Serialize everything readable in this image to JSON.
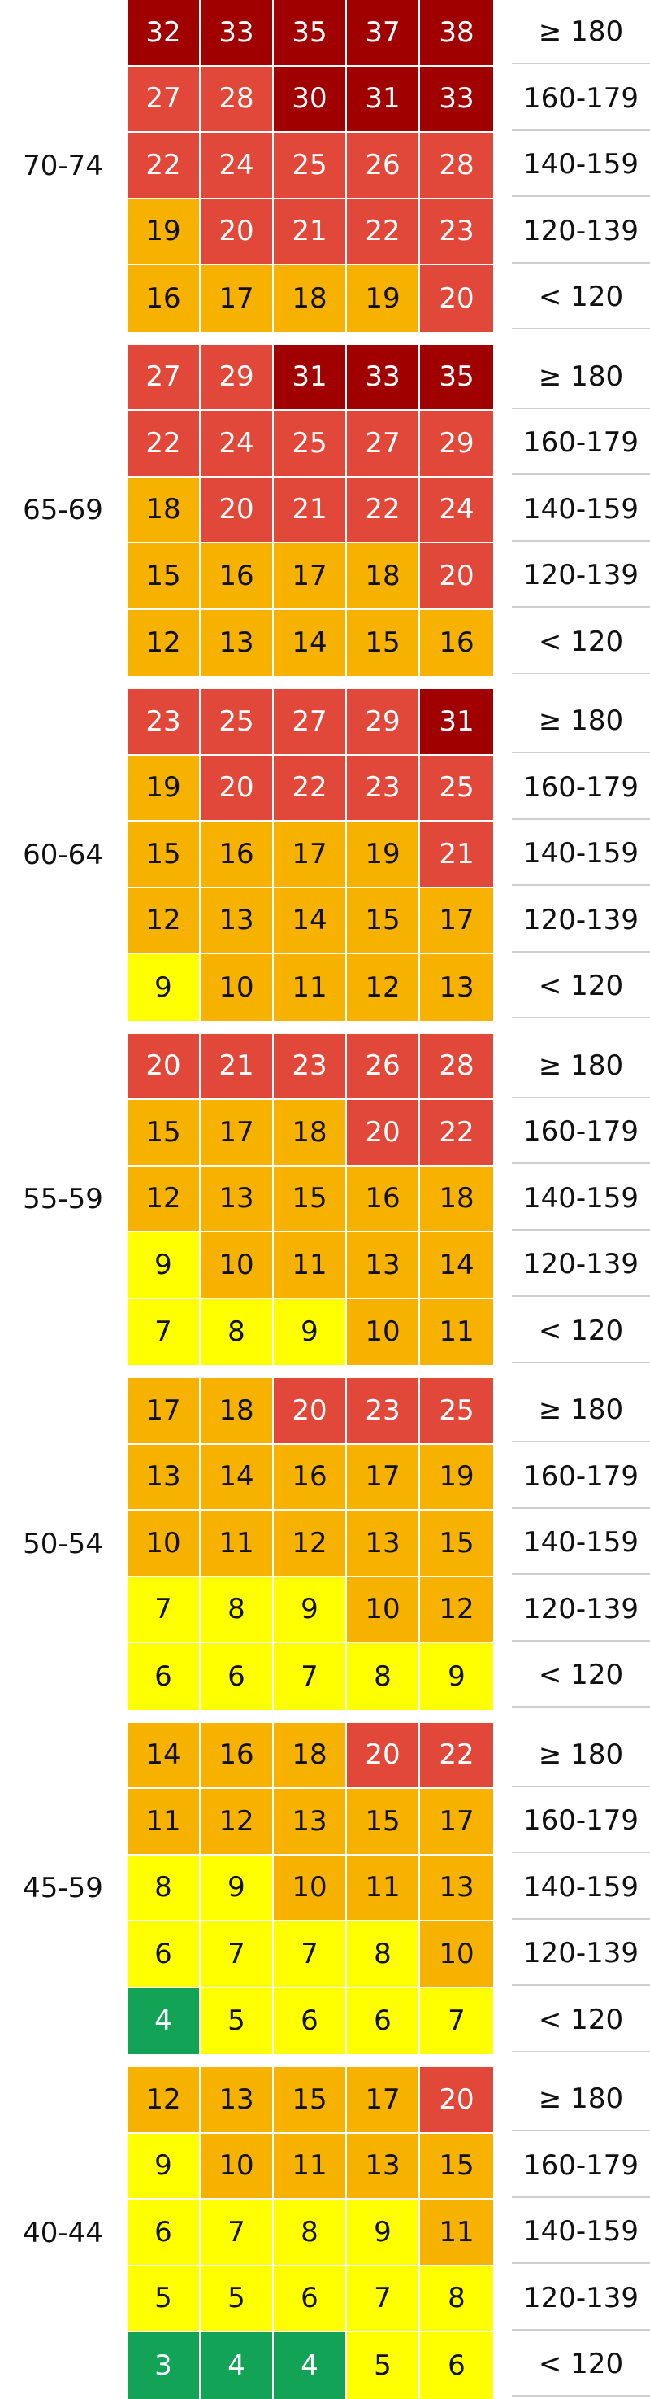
{
  "colors": {
    "green": "#13a356",
    "yellow": "#ffff00",
    "orange": "#f7b200",
    "red": "#e2483a",
    "darkred": "#a10000"
  },
  "chart_data": {
    "type": "heatmap",
    "bp_labels": [
      "≥ 180",
      "160-179",
      "140-159",
      "120-139",
      "< 120"
    ],
    "groups": [
      {
        "age": "70-74",
        "rows": [
          [
            32,
            33,
            35,
            37,
            38
          ],
          [
            27,
            28,
            30,
            31,
            33
          ],
          [
            22,
            24,
            25,
            26,
            28
          ],
          [
            19,
            20,
            21,
            22,
            23
          ],
          [
            16,
            17,
            18,
            19,
            20
          ]
        ],
        "colors": [
          [
            "darkred",
            "darkred",
            "darkred",
            "darkred",
            "darkred"
          ],
          [
            "red",
            "red",
            "darkred",
            "darkred",
            "darkred"
          ],
          [
            "red",
            "red",
            "red",
            "red",
            "red"
          ],
          [
            "orange",
            "red",
            "red",
            "red",
            "red"
          ],
          [
            "orange",
            "orange",
            "orange",
            "orange",
            "red"
          ]
        ]
      },
      {
        "age": "65-69",
        "rows": [
          [
            27,
            29,
            31,
            33,
            35
          ],
          [
            22,
            24,
            25,
            27,
            29
          ],
          [
            18,
            20,
            21,
            22,
            24
          ],
          [
            15,
            16,
            17,
            18,
            20
          ],
          [
            12,
            13,
            14,
            15,
            16
          ]
        ],
        "colors": [
          [
            "red",
            "red",
            "darkred",
            "darkred",
            "darkred"
          ],
          [
            "red",
            "red",
            "red",
            "red",
            "red"
          ],
          [
            "orange",
            "red",
            "red",
            "red",
            "red"
          ],
          [
            "orange",
            "orange",
            "orange",
            "orange",
            "red"
          ],
          [
            "orange",
            "orange",
            "orange",
            "orange",
            "orange"
          ]
        ]
      },
      {
        "age": "60-64",
        "rows": [
          [
            23,
            25,
            27,
            29,
            31
          ],
          [
            19,
            20,
            22,
            23,
            25
          ],
          [
            15,
            16,
            17,
            19,
            21
          ],
          [
            12,
            13,
            14,
            15,
            17
          ],
          [
            9,
            10,
            11,
            12,
            13
          ]
        ],
        "colors": [
          [
            "red",
            "red",
            "red",
            "red",
            "darkred"
          ],
          [
            "orange",
            "red",
            "red",
            "red",
            "red"
          ],
          [
            "orange",
            "orange",
            "orange",
            "orange",
            "red"
          ],
          [
            "orange",
            "orange",
            "orange",
            "orange",
            "orange"
          ],
          [
            "yellow",
            "orange",
            "orange",
            "orange",
            "orange"
          ]
        ]
      },
      {
        "age": "55-59",
        "rows": [
          [
            20,
            21,
            23,
            26,
            28
          ],
          [
            15,
            17,
            18,
            20,
            22
          ],
          [
            12,
            13,
            15,
            16,
            18
          ],
          [
            9,
            10,
            11,
            13,
            14
          ],
          [
            7,
            8,
            9,
            10,
            11
          ]
        ],
        "colors": [
          [
            "red",
            "red",
            "red",
            "red",
            "red"
          ],
          [
            "orange",
            "orange",
            "orange",
            "red",
            "red"
          ],
          [
            "orange",
            "orange",
            "orange",
            "orange",
            "orange"
          ],
          [
            "yellow",
            "orange",
            "orange",
            "orange",
            "orange"
          ],
          [
            "yellow",
            "yellow",
            "yellow",
            "orange",
            "orange"
          ]
        ]
      },
      {
        "age": "50-54",
        "rows": [
          [
            17,
            18,
            20,
            23,
            25
          ],
          [
            13,
            14,
            16,
            17,
            19
          ],
          [
            10,
            11,
            12,
            13,
            15
          ],
          [
            7,
            8,
            9,
            10,
            12
          ],
          [
            6,
            6,
            7,
            8,
            9
          ]
        ],
        "colors": [
          [
            "orange",
            "orange",
            "red",
            "red",
            "red"
          ],
          [
            "orange",
            "orange",
            "orange",
            "orange",
            "orange"
          ],
          [
            "orange",
            "orange",
            "orange",
            "orange",
            "orange"
          ],
          [
            "yellow",
            "yellow",
            "yellow",
            "orange",
            "orange"
          ],
          [
            "yellow",
            "yellow",
            "yellow",
            "yellow",
            "yellow"
          ]
        ]
      },
      {
        "age": "45-59",
        "rows": [
          [
            14,
            16,
            18,
            20,
            22
          ],
          [
            11,
            12,
            13,
            15,
            17
          ],
          [
            8,
            9,
            10,
            11,
            13
          ],
          [
            6,
            7,
            7,
            8,
            10
          ],
          [
            4,
            5,
            6,
            6,
            7
          ]
        ],
        "colors": [
          [
            "orange",
            "orange",
            "orange",
            "red",
            "red"
          ],
          [
            "orange",
            "orange",
            "orange",
            "orange",
            "orange"
          ],
          [
            "yellow",
            "yellow",
            "orange",
            "orange",
            "orange"
          ],
          [
            "yellow",
            "yellow",
            "yellow",
            "yellow",
            "orange"
          ],
          [
            "green",
            "yellow",
            "yellow",
            "yellow",
            "yellow"
          ]
        ]
      },
      {
        "age": "40-44",
        "rows": [
          [
            12,
            13,
            15,
            17,
            20
          ],
          [
            9,
            10,
            11,
            13,
            15
          ],
          [
            6,
            7,
            8,
            9,
            11
          ],
          [
            5,
            5,
            6,
            7,
            8
          ],
          [
            3,
            4,
            4,
            5,
            6
          ]
        ],
        "colors": [
          [
            "orange",
            "orange",
            "orange",
            "orange",
            "red"
          ],
          [
            "yellow",
            "orange",
            "orange",
            "orange",
            "orange"
          ],
          [
            "yellow",
            "yellow",
            "yellow",
            "yellow",
            "orange"
          ],
          [
            "yellow",
            "yellow",
            "yellow",
            "yellow",
            "yellow"
          ],
          [
            "green",
            "green",
            "green",
            "yellow",
            "yellow"
          ]
        ]
      }
    ]
  }
}
